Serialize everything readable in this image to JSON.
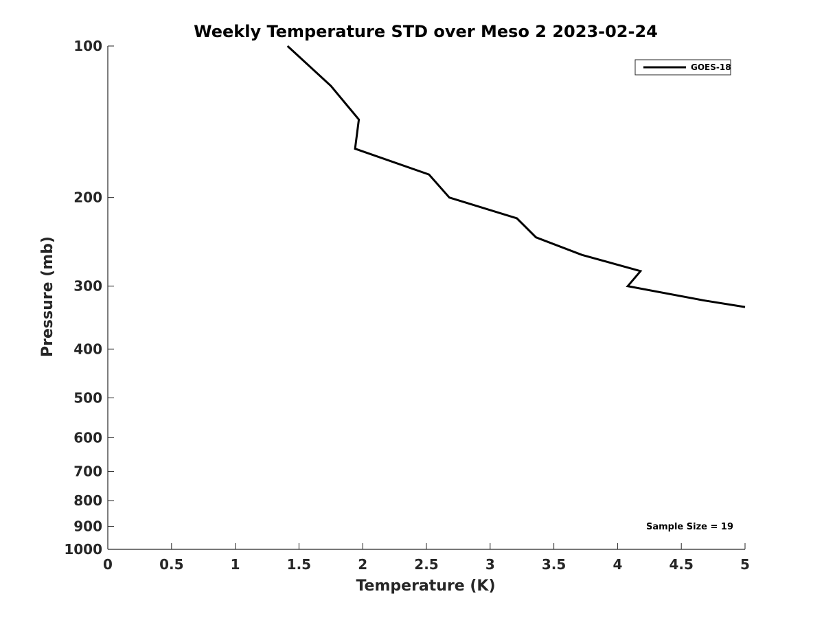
{
  "colors": {
    "background": "#ffffff",
    "axis": "#262626",
    "line": "#000000"
  },
  "chart_data": {
    "type": "line",
    "title": "Weekly Temperature STD over Meso 2 2023-02-24",
    "xlabel": "Temperature (K)",
    "ylabel": "Pressure (mb)",
    "xlim": [
      0,
      5
    ],
    "ylim": [
      100,
      1000
    ],
    "y_scale": "log",
    "y_reversed": true,
    "grid": false,
    "xticks": [
      0,
      0.5,
      1,
      1.5,
      2,
      2.5,
      3,
      3.5,
      4,
      4.5,
      5
    ],
    "xtick_labels": [
      "0",
      "0.5",
      "1",
      "1.5",
      "2",
      "2.5",
      "3",
      "3.5",
      "4",
      "4.5",
      "5"
    ],
    "yticks": [
      100,
      200,
      300,
      400,
      500,
      600,
      700,
      800,
      900,
      1000
    ],
    "ytick_labels": [
      "100",
      "200",
      "300",
      "400",
      "500",
      "600",
      "700",
      "800",
      "900",
      "1000"
    ],
    "legend": {
      "placement": "top-right",
      "entries": [
        "GOES-18"
      ]
    },
    "annotation": "Sample Size = 19",
    "series": [
      {
        "name": "GOES-18",
        "color": "#000000",
        "x": [
          1.41,
          1.75,
          1.97,
          1.94,
          2.52,
          2.68,
          3.21,
          3.36,
          3.72,
          4.18,
          4.08,
          4.67,
          5.0
        ],
        "y": [
          100,
          120,
          140,
          160,
          180,
          200,
          220,
          240,
          260,
          280,
          300,
          320,
          330
        ]
      }
    ]
  }
}
